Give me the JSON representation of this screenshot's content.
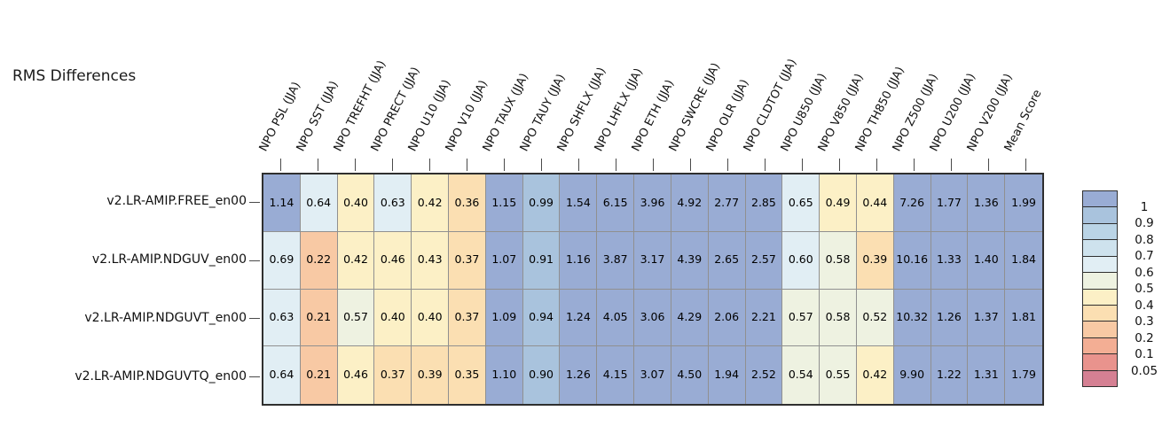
{
  "chart_data": {
    "type": "heatmap",
    "title": "RMS Differences",
    "columns": [
      "NPO PSL (JJA)",
      "NPO SST (JJA)",
      "NPO TREFHT (JJA)",
      "NPO PRECT (JJA)",
      "NPO U10 (JJA)",
      "NPO V10 (JJA)",
      "NPO TAUX (JJA)",
      "NPO TAUY (JJA)",
      "NPO SHFLX (JJA)",
      "NPO LHFLX (JJA)",
      "NPO ETH (JJA)",
      "NPO SWCRE (JJA)",
      "NPO OLR (JJA)",
      "NPO CLDTOT (JJA)",
      "NPO U850 (JJA)",
      "NPO V850 (JJA)",
      "NPO TH850 (JJA)",
      "NPO Z500 (JJA)",
      "NPO U200 (JJA)",
      "NPO V200 (JJA)",
      "Mean Score"
    ],
    "rows": [
      "v2.LR-AMIP.FREE_en00",
      "v2.LR-AMIP.NDGUV_en00",
      "v2.LR-AMIP.NDGUVT_en00",
      "v2.LR-AMIP.NDGUVTQ_en00"
    ],
    "values": [
      [
        1.14,
        0.64,
        0.4,
        0.63,
        0.42,
        0.36,
        1.15,
        0.99,
        1.54,
        6.15,
        3.96,
        4.92,
        2.77,
        2.85,
        0.65,
        0.49,
        0.44,
        7.26,
        1.77,
        1.36,
        1.99
      ],
      [
        0.69,
        0.22,
        0.42,
        0.46,
        0.43,
        0.37,
        1.07,
        0.91,
        1.16,
        3.87,
        3.17,
        4.39,
        2.65,
        2.57,
        0.6,
        0.58,
        0.39,
        10.16,
        1.33,
        1.4,
        1.84
      ],
      [
        0.63,
        0.21,
        0.57,
        0.4,
        0.4,
        0.37,
        1.09,
        0.94,
        1.24,
        4.05,
        3.06,
        4.29,
        2.06,
        2.21,
        0.57,
        0.58,
        0.52,
        10.32,
        1.26,
        1.37,
        1.81
      ],
      [
        0.64,
        0.21,
        0.46,
        0.37,
        0.39,
        0.35,
        1.1,
        0.9,
        1.26,
        4.15,
        3.07,
        4.5,
        1.94,
        2.52,
        0.54,
        0.55,
        0.42,
        9.9,
        1.22,
        1.31,
        1.79
      ]
    ],
    "colorbar": {
      "position": "right",
      "tick_labels": [
        "1",
        "0.9",
        "0.8",
        "0.7",
        "0.6",
        "0.5",
        "0.4",
        "0.3",
        "0.2",
        "0.1",
        "0.05"
      ],
      "thresholds": [
        1,
        0.9,
        0.8,
        0.7,
        0.6,
        0.5,
        0.4,
        0.3,
        0.2,
        0.1,
        0.05
      ],
      "band_colors": [
        "#99acd4",
        "#a9c3dd",
        "#bad4e6",
        "#cee2ed",
        "#e1eef4",
        "#eef2e1",
        "#fcf0c6",
        "#fbdfb2",
        "#f8c9a4",
        "#f3ae94",
        "#e9938d",
        "#d58093"
      ]
    },
    "styles": {
      "grid_line_color": "#909090",
      "outer_border_color": "#2f2f2f",
      "tick_color": "#4a4a4a",
      "text_color": "#111111",
      "background": "#ffffff"
    }
  }
}
